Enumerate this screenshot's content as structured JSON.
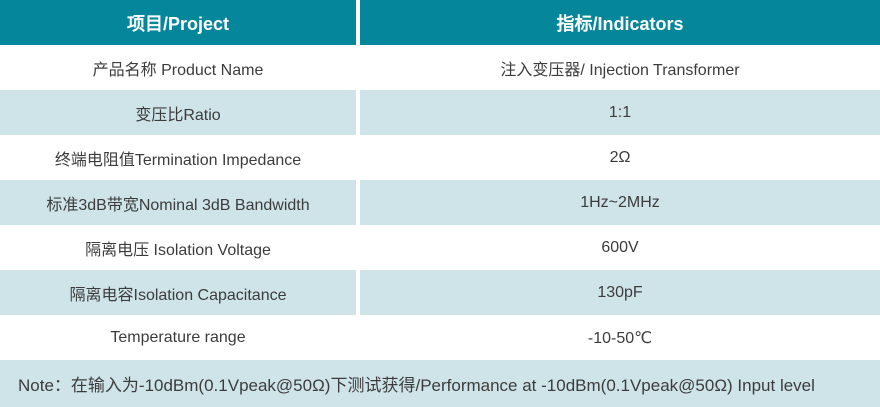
{
  "table": {
    "header": {
      "project_label": "项目/Project",
      "indicators_label": "指标/Indicators"
    },
    "rows": [
      {
        "project": "产品名称 Product Name",
        "indicator": "注入变压器/ Injection Transformer"
      },
      {
        "project": "变压比Ratio",
        "indicator": "1:1"
      },
      {
        "project": "终端电阻值Termination Impedance",
        "indicator": "2Ω"
      },
      {
        "project": "标准3dB带宽Nominal 3dB Bandwidth",
        "indicator": "1Hz~2MHz"
      },
      {
        "project": "隔离电压 Isolation Voltage",
        "indicator": "600V"
      },
      {
        "project": "隔离电容Isolation Capacitance",
        "indicator": "130pF"
      },
      {
        "project": "Temperature range",
        "indicator": "-10-50℃"
      }
    ],
    "note": "Note：在输入为-10dBm(0.1Vpeak@50Ω)下测试获得/Performance at -10dBm(0.1Vpeak@50Ω) Input level"
  },
  "colors": {
    "header_bg": "#05869a",
    "alt_row_bg": "#cfe4e8",
    "text_color": "#3c3c3c",
    "header_text": "#ffffff",
    "divider": "#ffffff"
  }
}
